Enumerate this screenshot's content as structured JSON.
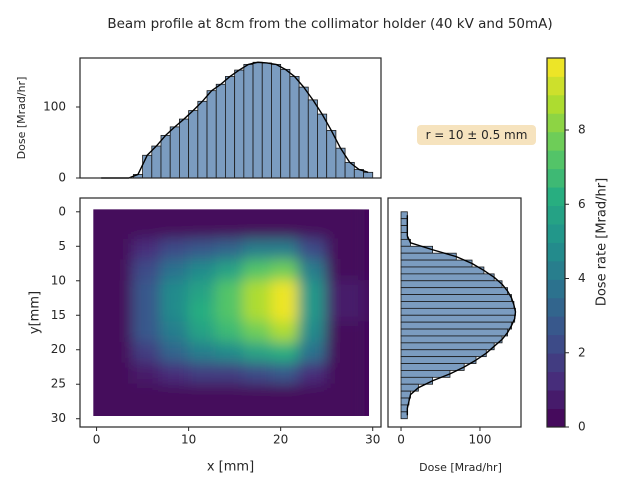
{
  "chart_data": [
    {
      "type": "histogram",
      "ylabel": "Dose [Mrad/hr]",
      "bins": [
        0,
        1,
        2,
        3,
        4,
        5,
        6,
        7,
        8,
        9,
        10,
        11,
        12,
        13,
        14,
        15,
        16,
        17,
        18,
        19,
        20,
        21,
        22,
        23,
        24,
        25,
        26,
        27,
        28,
        29,
        30
      ],
      "values": [
        0,
        0,
        0,
        0,
        5,
        32,
        45,
        60,
        72,
        83,
        95,
        108,
        123,
        132,
        143,
        152,
        160,
        163,
        162,
        160,
        153,
        143,
        128,
        110,
        90,
        67,
        42,
        22,
        12,
        8
      ],
      "color": "#7b9cc0",
      "edge_color": "#1a1a1a",
      "line_color": "#000000",
      "xlim": [
        -1.8,
        30.9
      ],
      "ylim": [
        0,
        169
      ],
      "yticks": [
        0,
        100
      ]
    },
    {
      "type": "contour",
      "title": "Beam profile at 8cm from the collimator holder (40 kV and 50mA)",
      "annotation": "r = 10 ± 0.5 mm",
      "xlabel": "x [mm]",
      "ylabel": "y[mm]",
      "x": [
        0,
        3,
        6,
        9,
        12,
        15,
        18,
        21,
        24,
        27
      ],
      "y": [
        0,
        3,
        6,
        9,
        12,
        15,
        18,
        21,
        24,
        27,
        30
      ],
      "z": [
        [
          0,
          0,
          0.1,
          0.1,
          0.1,
          0.1,
          0.2,
          0.2,
          0.1,
          0
        ],
        [
          0,
          0,
          0.1,
          0.2,
          0.2,
          0.3,
          0.4,
          0.4,
          0.2,
          0
        ],
        [
          0,
          0.1,
          1.3,
          2.2,
          2.7,
          3.3,
          4.0,
          4.4,
          2.4,
          0.2
        ],
        [
          0,
          0.2,
          2.4,
          3.9,
          4.9,
          5.9,
          7.1,
          7.8,
          4.3,
          0.4
        ],
        [
          0,
          0.2,
          2.9,
          4.8,
          5.9,
          7.1,
          8.6,
          9.5,
          5.2,
          0.5
        ],
        [
          0,
          0.2,
          2.9,
          4.9,
          6.1,
          7.4,
          8.8,
          9.8,
          5.4,
          0.5
        ],
        [
          0,
          0.2,
          2.6,
          4.4,
          5.5,
          6.6,
          7.9,
          8.8,
          4.9,
          0.4
        ],
        [
          0,
          0.1,
          1.9,
          3.2,
          4.0,
          4.8,
          5.7,
          6.4,
          3.5,
          0.3
        ],
        [
          0,
          0.1,
          0.7,
          1.2,
          1.5,
          1.8,
          2.2,
          2.5,
          1.3,
          0.1
        ],
        [
          0,
          0,
          0.1,
          0.2,
          0.2,
          0.3,
          0.4,
          0.4,
          0.2,
          0
        ],
        [
          0,
          0,
          0.1,
          0.1,
          0.1,
          0.1,
          0.2,
          0.2,
          0.1,
          0
        ]
      ],
      "colormap": "viridis",
      "levels": 20,
      "xlim": [
        -1.8,
        30.9
      ],
      "xticks": [
        0,
        10,
        20,
        30
      ],
      "ylim": [
        -2,
        31.2
      ],
      "y_inverted": true,
      "yticks": [
        0,
        5,
        10,
        15,
        20,
        25,
        30
      ],
      "zlim": [
        0,
        9.94
      ],
      "zticks": [
        0,
        2,
        4,
        6,
        8
      ],
      "colorbar_label": "Dose rate [Mrad/hr]"
    },
    {
      "type": "histogram",
      "orientation": "horizontal",
      "xlabel": "Dose [Mrad/hr]",
      "bins": [
        0,
        1,
        2,
        3,
        4,
        5,
        6,
        7,
        8,
        9,
        10,
        11,
        12,
        13,
        14,
        15,
        16,
        17,
        18,
        19,
        20,
        21,
        22,
        23,
        24,
        25,
        26,
        27,
        28,
        29,
        30
      ],
      "values": [
        8,
        8,
        8,
        8,
        12,
        40,
        70,
        90,
        105,
        118,
        128,
        135,
        140,
        143,
        145,
        144,
        140,
        135,
        128,
        118,
        108,
        95,
        80,
        62,
        40,
        22,
        12,
        10,
        8,
        8
      ],
      "color": "#7b9cc0",
      "edge_color": "#1a1a1a",
      "line_color": "#000000",
      "xlim": [
        -16.5,
        152
      ],
      "xticks": [
        0,
        100
      ]
    }
  ]
}
